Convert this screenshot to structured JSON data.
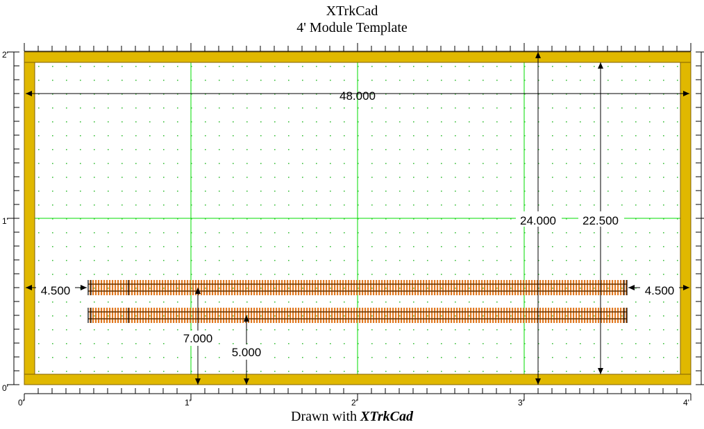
{
  "title": {
    "line1": "XTrkCad",
    "line2": "4' Module Template"
  },
  "footer": {
    "prefix": "Drawn with",
    "brand": "XTrkCad"
  },
  "ruler": {
    "x_labels": [
      "0'",
      "1'",
      "2'",
      "3'",
      "4'"
    ],
    "y_labels": [
      "0'",
      "1'",
      "2'"
    ]
  },
  "dimensions": {
    "width": "48.000",
    "height_outer": "24.000",
    "height_inner": "22.500",
    "left_offset": "4.500",
    "right_offset": "4.500",
    "track1_offset": "7.000",
    "track2_offset": "5.000"
  },
  "colors": {
    "frame": "#E0B800",
    "frame_stroke": "#806000",
    "grid": "#00DD00",
    "dot": "#40C040",
    "tie": "#E07820",
    "rail": "#603000"
  }
}
